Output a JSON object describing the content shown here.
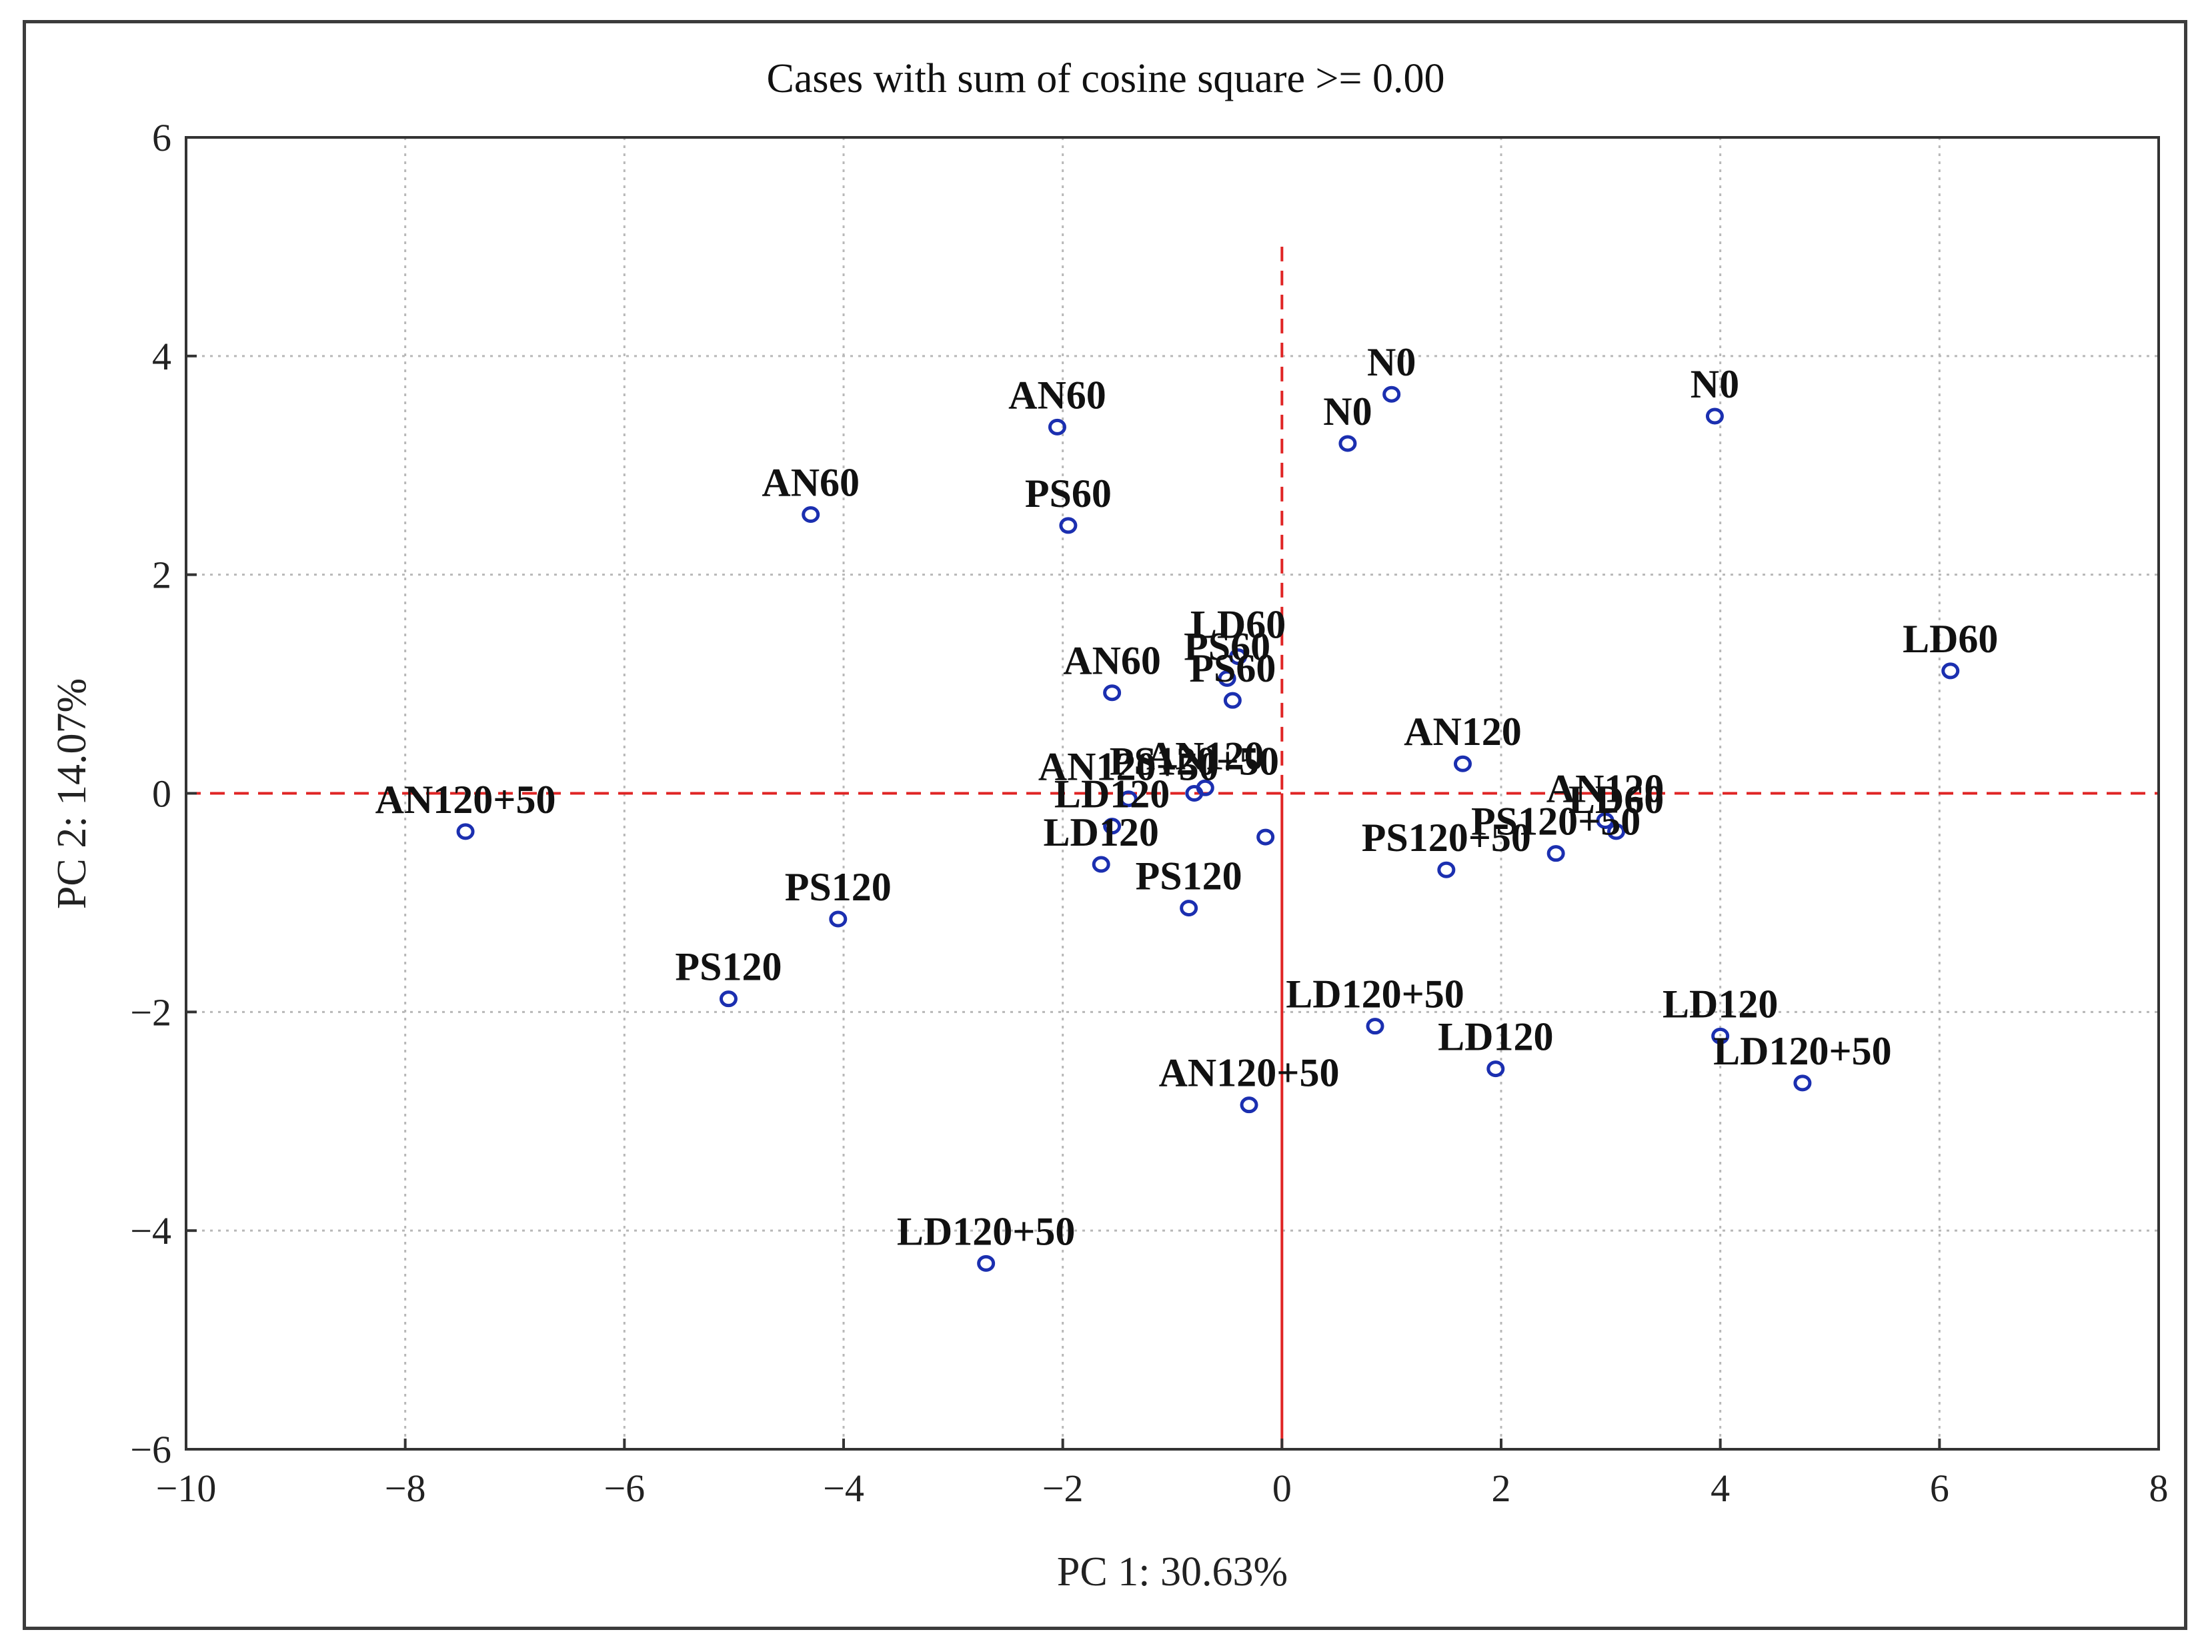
{
  "chart_data": {
    "type": "scatter",
    "title": "Cases with sum of cosine square >=  0.00",
    "xlabel": "PC 1: 30.63%",
    "ylabel": "PC 2: 14.07%",
    "xlim": [
      -10,
      8
    ],
    "ylim": [
      -6,
      6
    ],
    "x_ticks": [
      -10,
      -8,
      -6,
      -4,
      -2,
      0,
      2,
      4,
      6,
      8
    ],
    "y_ticks": [
      -6,
      -4,
      -2,
      0,
      2,
      4,
      6
    ],
    "x_tick_labels": [
      "−10",
      "−8",
      "−6",
      "−4",
      "−2",
      "0",
      "2",
      "4",
      "6",
      "8"
    ],
    "y_tick_labels": [
      "−6",
      "−4",
      "−2",
      "0",
      "2",
      "4",
      "6"
    ],
    "grid": true,
    "reference_lines": {
      "x": 0,
      "y": 0,
      "color": "#e02424"
    },
    "marker_color": "#1b2fb0",
    "points": [
      {
        "label": "N0",
        "x": 1.0,
        "y": 3.65
      },
      {
        "label": "N0",
        "x": 0.6,
        "y": 3.2
      },
      {
        "label": "N0",
        "x": 3.95,
        "y": 3.45
      },
      {
        "label": "AN60",
        "x": -2.05,
        "y": 3.35
      },
      {
        "label": "AN60",
        "x": -4.3,
        "y": 2.55
      },
      {
        "label": "PS60",
        "x": -1.95,
        "y": 2.45
      },
      {
        "label": "LD60",
        "x": -0.4,
        "y": 1.25
      },
      {
        "label": "PS60",
        "x": -0.5,
        "y": 1.05
      },
      {
        "label": "PS60",
        "x": -0.45,
        "y": 0.85
      },
      {
        "label": "AN60",
        "x": -1.55,
        "y": 0.92
      },
      {
        "label": "LD60",
        "x": 6.1,
        "y": 1.12
      },
      {
        "label": "AN120",
        "x": 1.65,
        "y": 0.27
      },
      {
        "label": "AN120",
        "x": 2.95,
        "y": -0.25
      },
      {
        "label": "LD60",
        "x": 3.05,
        "y": -0.35
      },
      {
        "label": "PS120+50",
        "x": 2.5,
        "y": -0.55
      },
      {
        "label": "PS120+50",
        "x": 1.5,
        "y": -0.7
      },
      {
        "label": "AN120",
        "x": -0.7,
        "y": 0.05
      },
      {
        "label": "PS120+50",
        "x": -0.8,
        "y": 0.0
      },
      {
        "label": "AN120+50",
        "x": -1.4,
        "y": -0.05
      },
      {
        "label": "LD120",
        "x": -1.55,
        "y": -0.3
      },
      {
        "label": "LD120",
        "x": -1.65,
        "y": -0.65
      },
      {
        "label": "PS120",
        "x": -0.85,
        "y": -1.05
      },
      {
        "label": "AN120+50",
        "x": -7.45,
        "y": -0.35
      },
      {
        "label": "PS120",
        "x": -4.05,
        "y": -1.15
      },
      {
        "label": "PS120",
        "x": -5.05,
        "y": -1.88
      },
      {
        "label": "LD120+50",
        "x": 0.85,
        "y": -2.13
      },
      {
        "label": "LD120",
        "x": 1.95,
        "y": -2.52
      },
      {
        "label": "LD120",
        "x": 4.0,
        "y": -2.22
      },
      {
        "label": "LD120+50",
        "x": 4.75,
        "y": -2.65
      },
      {
        "label": "AN120+50",
        "x": -0.3,
        "y": -2.85
      },
      {
        "label": "LD120+50",
        "x": -2.7,
        "y": -4.3
      },
      {
        "label": "",
        "x": -0.15,
        "y": -0.4
      }
    ]
  }
}
